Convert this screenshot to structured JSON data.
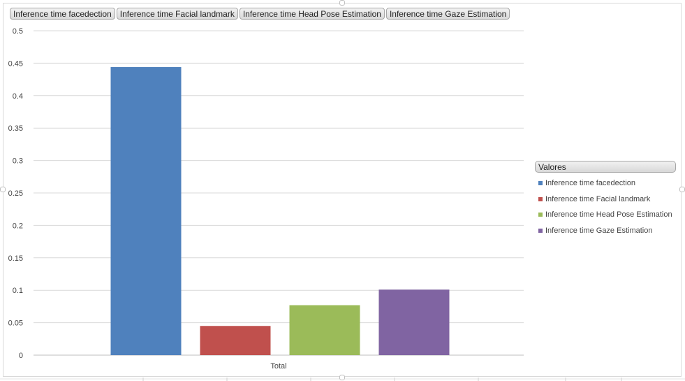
{
  "field_buttons": [
    "Inference time facedection",
    "Inference time Facial landmark",
    "Inference time Head Pose Estimation",
    "Inference time Gaze Estimation"
  ],
  "legend": {
    "title": "Valores",
    "position": "right"
  },
  "chart_data": {
    "type": "bar",
    "categories": [
      "Total"
    ],
    "series": [
      {
        "name": "Inference time facedection",
        "values": [
          0.444
        ],
        "color": "#4F81BD"
      },
      {
        "name": "Inference time Facial landmark",
        "values": [
          0.045
        ],
        "color": "#C0504D"
      },
      {
        "name": "Inference time Head Pose Estimation",
        "values": [
          0.077
        ],
        "color": "#9BBB59"
      },
      {
        "name": "Inference time Gaze Estimation",
        "values": [
          0.101
        ],
        "color": "#8064A2"
      }
    ],
    "yticks": [
      "0",
      "0.05",
      "0.1",
      "0.15",
      "0.2",
      "0.25",
      "0.3",
      "0.35",
      "0.4",
      "0.45",
      "0.5"
    ],
    "ylim": [
      0,
      0.5
    ],
    "grid": true,
    "legend_placement": "right"
  }
}
